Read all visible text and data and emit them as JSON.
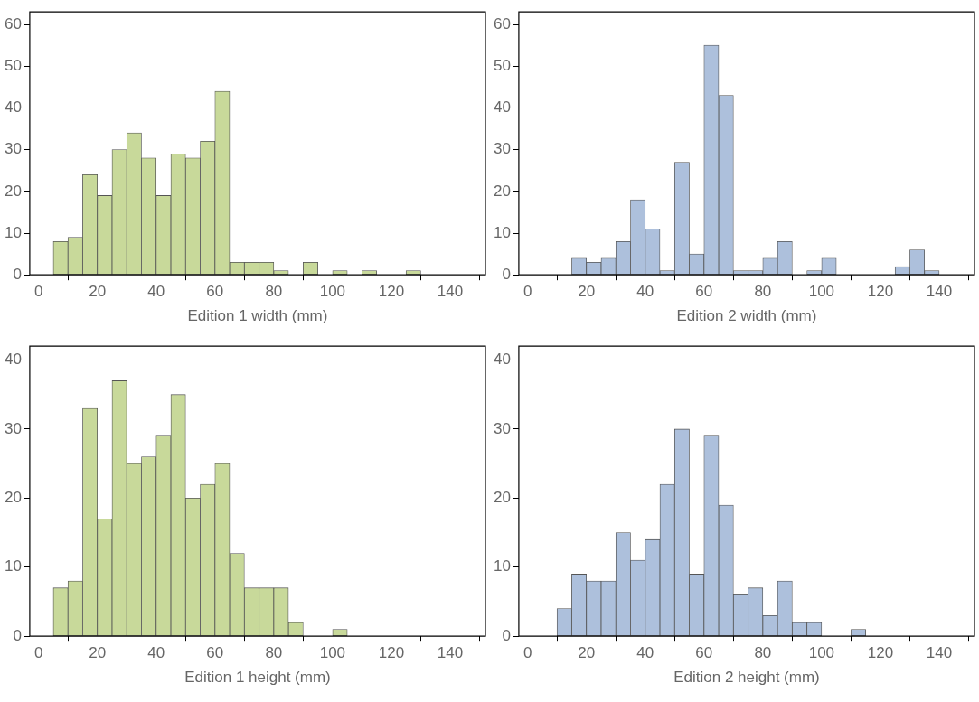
{
  "chart_data": [
    {
      "type": "histogram",
      "xlabel": "Edition 1 width (mm)",
      "color": "#c8d99a",
      "bins": [
        5,
        10,
        15,
        20,
        25,
        30,
        35,
        40,
        45,
        50,
        55,
        60,
        65,
        70,
        75,
        80,
        85,
        90,
        95,
        100,
        105,
        110,
        115,
        120,
        125,
        130
      ],
      "values": [
        8,
        9,
        24,
        19,
        30,
        34,
        28,
        19,
        29,
        28,
        32,
        44,
        3,
        3,
        3,
        1,
        0,
        3,
        0,
        1,
        0,
        1,
        0,
        0,
        1
      ],
      "xlim": [
        -3,
        152
      ],
      "xticks": [
        0,
        20,
        40,
        60,
        80,
        100,
        120,
        140
      ],
      "ylim": [
        0,
        63
      ],
      "yticks": [
        0,
        10,
        20,
        30,
        40,
        50,
        60
      ]
    },
    {
      "type": "histogram",
      "xlabel": "Edition 2 width (mm)",
      "color": "#adc0dc",
      "bins": [
        15,
        20,
        25,
        30,
        35,
        40,
        45,
        50,
        55,
        60,
        65,
        70,
        75,
        80,
        85,
        90,
        95,
        100,
        105,
        110,
        115,
        120,
        125,
        130,
        135,
        140
      ],
      "values": [
        4,
        3,
        4,
        8,
        18,
        11,
        1,
        27,
        5,
        55,
        43,
        1,
        1,
        4,
        8,
        0,
        1,
        4,
        0,
        0,
        0,
        0,
        2,
        6,
        1
      ],
      "xlim": [
        -3,
        152
      ],
      "xticks": [
        0,
        20,
        40,
        60,
        80,
        100,
        120,
        140
      ],
      "ylim": [
        0,
        63
      ],
      "yticks": [
        0,
        10,
        20,
        30,
        40,
        50,
        60
      ]
    },
    {
      "type": "histogram",
      "xlabel": "Edition 1 height (mm)",
      "color": "#c8d99a",
      "bins": [
        5,
        10,
        15,
        20,
        25,
        30,
        35,
        40,
        45,
        50,
        55,
        60,
        65,
        70,
        75,
        80,
        85,
        90,
        95,
        100,
        105
      ],
      "values": [
        7,
        8,
        33,
        17,
        37,
        25,
        26,
        29,
        35,
        20,
        22,
        25,
        12,
        7,
        7,
        7,
        2,
        0,
        0,
        1
      ],
      "xlim": [
        -3,
        152
      ],
      "xticks": [
        0,
        20,
        40,
        60,
        80,
        100,
        120,
        140
      ],
      "ylim": [
        0,
        42
      ],
      "yticks": [
        0,
        10,
        20,
        30,
        40
      ]
    },
    {
      "type": "histogram",
      "xlabel": "Edition 2 height (mm)",
      "color": "#adc0dc",
      "bins": [
        10,
        15,
        20,
        25,
        30,
        35,
        40,
        45,
        50,
        55,
        60,
        65,
        70,
        75,
        80,
        85,
        90,
        95,
        100,
        105,
        110,
        115
      ],
      "values": [
        4,
        9,
        8,
        8,
        15,
        11,
        14,
        22,
        30,
        9,
        29,
        19,
        6,
        7,
        3,
        8,
        2,
        2,
        0,
        0,
        1
      ],
      "xlim": [
        -3,
        152
      ],
      "xticks": [
        0,
        20,
        40,
        60,
        80,
        100,
        120,
        140
      ],
      "ylim": [
        0,
        42
      ],
      "yticks": [
        0,
        10,
        20,
        30,
        40
      ]
    }
  ]
}
